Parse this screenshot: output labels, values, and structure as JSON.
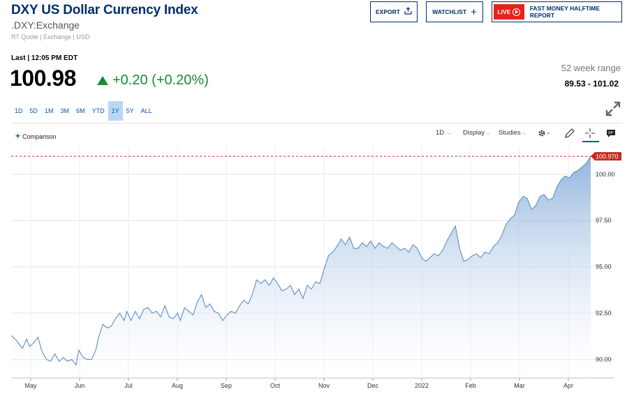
{
  "header": {
    "title": "DXY US Dollar Currency Index",
    "symbol": ".DXY:Exchange",
    "meta": "RT Quote | Exchange | USD",
    "export_label": "EXPORT",
    "watchlist_label": "WATCHLIST",
    "live_badge": "LIVE",
    "live_label": "FAST MONEY HALFTIME REPORT"
  },
  "quote": {
    "last_label": "Last | 12:05 PM EDT",
    "price": "100.98",
    "change": "+0.20 (+0.20%)",
    "change_color": "#1a8a3a",
    "range_label": "52 week range",
    "range_value": "89.53 - 101.02"
  },
  "timeframes": [
    {
      "label": "1D"
    },
    {
      "label": "5D"
    },
    {
      "label": "1M"
    },
    {
      "label": "3M"
    },
    {
      "label": "6M"
    },
    {
      "label": "YTD"
    },
    {
      "label": "1Y",
      "active": true
    },
    {
      "label": "5Y"
    },
    {
      "label": "ALL"
    }
  ],
  "toolbar": {
    "comparison_label": "Comparison",
    "interval_label": "1D",
    "display_label": "Display",
    "studies_label": "Studies",
    "icons": [
      "gear-icon",
      "pencil-icon",
      "crosshair-icon",
      "comment-icon",
      "expand-icon"
    ]
  },
  "chart_data": {
    "type": "area",
    "ylim": [
      89.0,
      101.5
    ],
    "yticks": [
      "90.00",
      "92.50",
      "95.00",
      "97.50",
      "100.00"
    ],
    "xticks": [
      "May",
      "Jun",
      "Jul",
      "Aug",
      "Sep",
      "Oct",
      "Nov",
      "Dec",
      "2022",
      "Feb",
      "Mar",
      "Apr"
    ],
    "last_value_label": "100.970",
    "last_value": 100.97,
    "series_color": "#5b8fc9",
    "marker_color": "#c8281e",
    "series": [
      {
        "points": [
          [
            0,
            91.3
          ],
          [
            4,
            91.0
          ],
          [
            8,
            90.6
          ],
          [
            11,
            91.1
          ],
          [
            13,
            90.7
          ],
          [
            16,
            90.9
          ],
          [
            19,
            91.2
          ],
          [
            22,
            90.4
          ],
          [
            25,
            90.0
          ],
          [
            28,
            89.9
          ],
          [
            31,
            90.3
          ],
          [
            34,
            89.9
          ],
          [
            37,
            90.1
          ],
          [
            40,
            89.9
          ],
          [
            43,
            90.0
          ],
          [
            46,
            89.7
          ],
          [
            48,
            90.5
          ],
          [
            51,
            90.1
          ],
          [
            54,
            90.0
          ],
          [
            57,
            90.0
          ],
          [
            60,
            90.5
          ],
          [
            62,
            91.2
          ],
          [
            65,
            91.9
          ],
          [
            68,
            91.7
          ],
          [
            71,
            91.8
          ],
          [
            74,
            92.2
          ],
          [
            77,
            92.5
          ],
          [
            80,
            92.1
          ],
          [
            82,
            92.6
          ],
          [
            85,
            92.1
          ],
          [
            88,
            92.6
          ],
          [
            91,
            92.2
          ],
          [
            94,
            92.7
          ],
          [
            97,
            92.8
          ],
          [
            100,
            92.5
          ],
          [
            103,
            92.6
          ],
          [
            106,
            92.3
          ],
          [
            109,
            92.9
          ],
          [
            112,
            92.3
          ],
          [
            115,
            92.2
          ],
          [
            118,
            92.5
          ],
          [
            120,
            92.1
          ],
          [
            123,
            92.8
          ],
          [
            126,
            92.6
          ],
          [
            129,
            92.4
          ],
          [
            132,
            93.1
          ],
          [
            135,
            93.5
          ],
          [
            138,
            92.8
          ],
          [
            141,
            93.0
          ],
          [
            144,
            92.6
          ],
          [
            147,
            92.5
          ],
          [
            150,
            92.1
          ],
          [
            153,
            92.4
          ],
          [
            156,
            92.6
          ],
          [
            159,
            92.5
          ],
          [
            162,
            92.9
          ],
          [
            165,
            93.2
          ],
          [
            168,
            93.0
          ],
          [
            171,
            93.5
          ],
          [
            174,
            94.3
          ],
          [
            177,
            94.1
          ],
          [
            180,
            94.3
          ],
          [
            183,
            94.0
          ],
          [
            186,
            94.4
          ],
          [
            189,
            94.1
          ],
          [
            192,
            93.7
          ],
          [
            195,
            93.8
          ],
          [
            198,
            94.0
          ],
          [
            201,
            93.5
          ],
          [
            204,
            93.8
          ],
          [
            207,
            93.3
          ],
          [
            210,
            94.0
          ],
          [
            213,
            93.8
          ],
          [
            216,
            94.2
          ],
          [
            219,
            94.1
          ],
          [
            222,
            94.9
          ],
          [
            225,
            95.6
          ],
          [
            228,
            95.8
          ],
          [
            231,
            96.1
          ],
          [
            234,
            96.5
          ],
          [
            237,
            96.2
          ],
          [
            240,
            96.6
          ],
          [
            243,
            96.0
          ],
          [
            246,
            96.0
          ],
          [
            249,
            96.3
          ],
          [
            252,
            96.1
          ],
          [
            255,
            96.4
          ],
          [
            258,
            96.0
          ],
          [
            261,
            96.3
          ],
          [
            264,
            96.1
          ],
          [
            267,
            96.0
          ],
          [
            270,
            96.3
          ],
          [
            273,
            96.1
          ],
          [
            276,
            95.9
          ],
          [
            279,
            96.0
          ],
          [
            282,
            95.8
          ],
          [
            285,
            96.2
          ],
          [
            288,
            96.0
          ],
          [
            291,
            95.5
          ],
          [
            294,
            95.3
          ],
          [
            297,
            95.5
          ],
          [
            300,
            95.7
          ],
          [
            303,
            95.6
          ],
          [
            306,
            95.9
          ],
          [
            309,
            96.4
          ],
          [
            312,
            96.8
          ],
          [
            315,
            97.2
          ],
          [
            318,
            96.0
          ],
          [
            321,
            95.3
          ],
          [
            324,
            95.4
          ],
          [
            327,
            95.6
          ],
          [
            330,
            95.7
          ],
          [
            333,
            95.5
          ],
          [
            336,
            95.8
          ],
          [
            339,
            95.7
          ],
          [
            342,
            96.1
          ],
          [
            345,
            96.3
          ],
          [
            348,
            96.7
          ],
          [
            351,
            97.3
          ],
          [
            354,
            97.6
          ],
          [
            357,
            97.8
          ],
          [
            360,
            98.5
          ],
          [
            363,
            98.8
          ],
          [
            366,
            98.7
          ],
          [
            369,
            98.1
          ],
          [
            372,
            98.3
          ],
          [
            375,
            98.8
          ],
          [
            378,
            98.9
          ],
          [
            381,
            98.6
          ],
          [
            384,
            98.7
          ],
          [
            387,
            99.3
          ],
          [
            390,
            99.7
          ],
          [
            393,
            99.9
          ],
          [
            396,
            99.8
          ],
          [
            399,
            100.1
          ],
          [
            402,
            100.2
          ],
          [
            405,
            100.4
          ],
          [
            408,
            100.6
          ],
          [
            411,
            100.97
          ]
        ]
      }
    ]
  }
}
